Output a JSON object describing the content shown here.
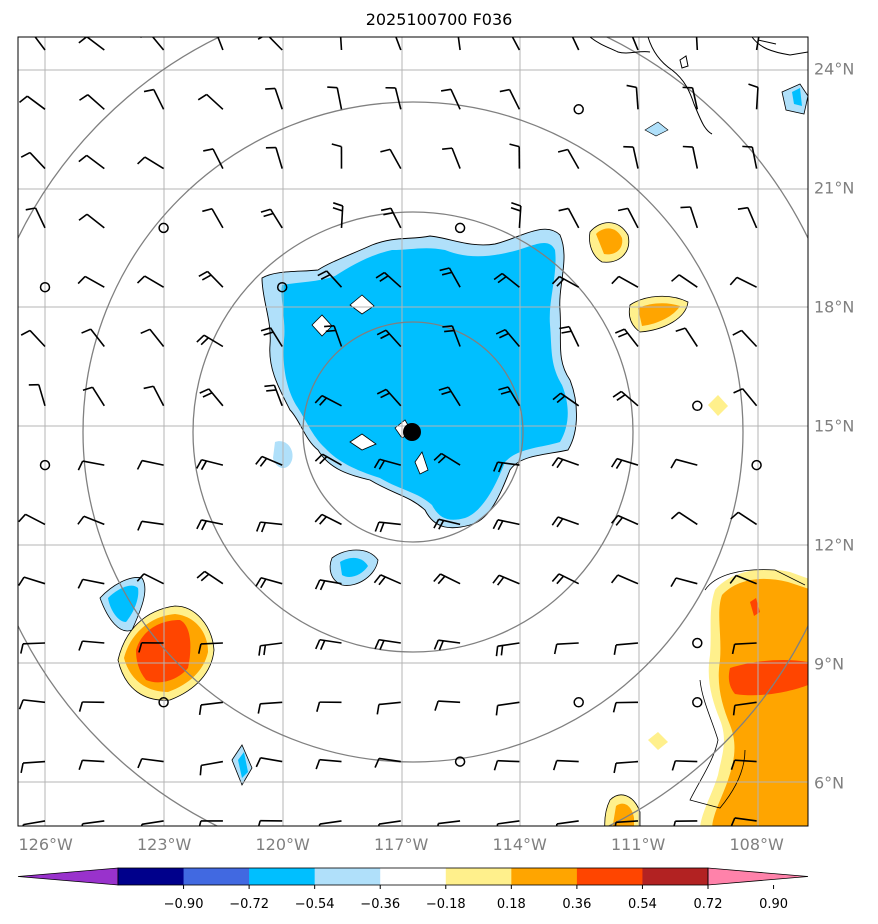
{
  "title": "2025100700 F036",
  "lon_labels": [
    "126°W",
    "123°W",
    "120°W",
    "117°W",
    "114°W",
    "111°W",
    "108°W"
  ],
  "lon_values": [
    -126,
    -123,
    -120,
    -117,
    -114,
    -111,
    -108
  ],
  "lat_labels": [
    "24°N",
    "21°N",
    "18°N",
    "15°N",
    "12°N",
    "9°N",
    "6°N"
  ],
  "lat_values": [
    24,
    21,
    18,
    15,
    12,
    9,
    6
  ],
  "extent": {
    "lon_min": -126.7,
    "lon_max": -106.7,
    "lat_min": 4.9,
    "lat_max": 24.8
  },
  "center": {
    "lon": -117,
    "lat": 15
  },
  "range_rings_deg": [
    2.8,
    5.5,
    8.3,
    11.1
  ],
  "colorbar": {
    "ticks": [
      "−0.90",
      "−0.72",
      "−0.54",
      "−0.36",
      "−0.18",
      "0.18",
      "0.36",
      "0.54",
      "0.72",
      "0.90"
    ],
    "colors": [
      "#9932cc",
      "#00008b",
      "#4169e1",
      "#00bfff",
      "#b0e0fa",
      "#ffffff",
      "#fff08c",
      "#ffa500",
      "#ff4500",
      "#b22222",
      "#ff82aa"
    ]
  },
  "colors": {
    "grid": "#b4b4b4",
    "ring": "#808080",
    "coast": "#000000"
  }
}
